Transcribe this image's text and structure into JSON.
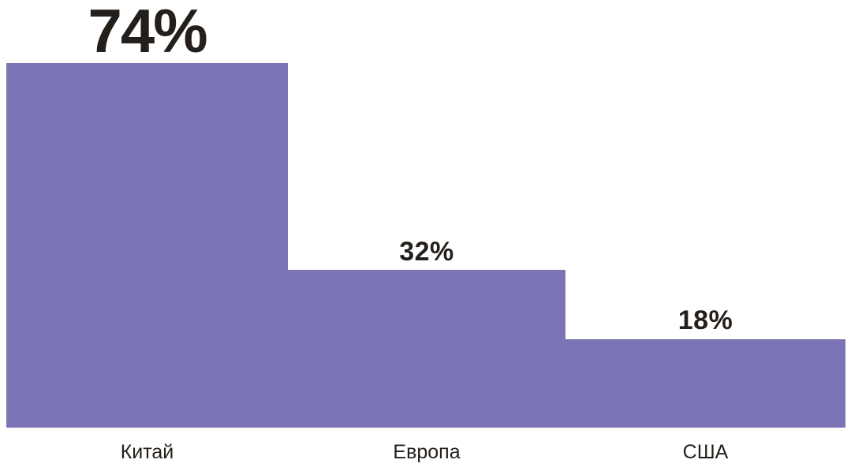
{
  "chart_data": {
    "type": "bar",
    "categories": [
      "Китай",
      "Европа",
      "США"
    ],
    "values": [
      74,
      32,
      18
    ],
    "value_labels": [
      "74%",
      "32%",
      "18%"
    ],
    "series": [
      {
        "name": "",
        "values": [
          74,
          32,
          18
        ]
      }
    ],
    "title": "",
    "xlabel": "",
    "ylabel": "",
    "unit": "%",
    "grid": false,
    "legend_position": "none",
    "orientation": "vertical",
    "bars_flush": true,
    "bar_color": "#7b74b5",
    "text_color": "#241f1a",
    "background_color": "#ffffff"
  }
}
